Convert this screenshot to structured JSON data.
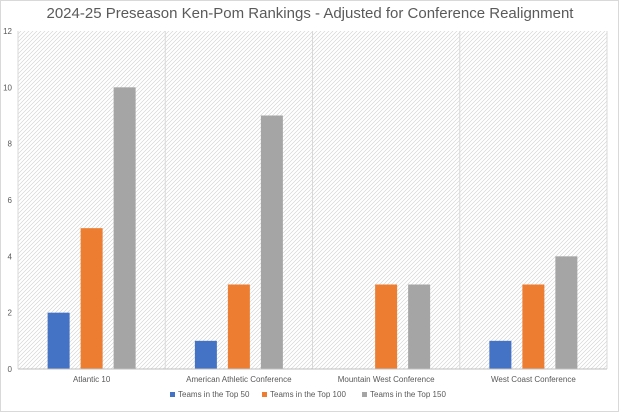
{
  "chart_data": {
    "type": "bar",
    "title": "2024-25 Preseason Ken-Pom Rankings - Adjusted for Conference Realignment",
    "xlabel": "",
    "ylabel": "",
    "categories": [
      "Atlantic 10",
      "American Athletic Conference",
      "Mountain West Conference",
      "West Coast Conference"
    ],
    "series": [
      {
        "name": "Teams in the Top 50",
        "color": "#4472c4",
        "values": [
          2,
          1,
          0,
          1
        ]
      },
      {
        "name": "Teams in the Top 100",
        "color": "#ed7d31",
        "values": [
          5,
          3,
          3,
          3
        ]
      },
      {
        "name": "Teams in the Top 150",
        "color": "#a5a5a5",
        "values": [
          10,
          9,
          3,
          4
        ]
      }
    ],
    "ylim": [
      0,
      12
    ],
    "yticks": [
      "0",
      "2",
      "4",
      "6",
      "8",
      "10",
      "12"
    ],
    "grid": "vertical category dividers, hatched plot background",
    "legend_position": "bottom"
  }
}
